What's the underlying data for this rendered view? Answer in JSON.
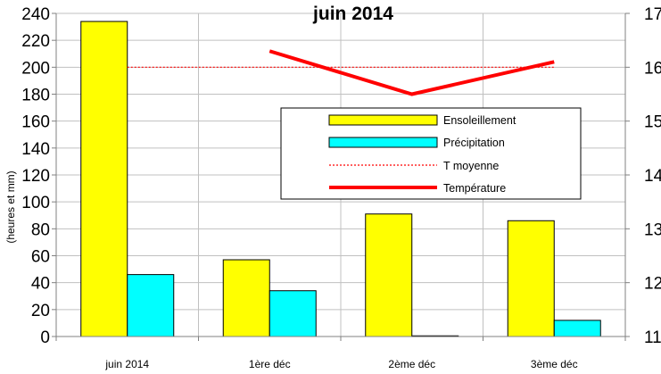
{
  "chart_data": {
    "type": "bar",
    "title": "juin 2014",
    "ylabel": "(heures et mm)",
    "categories": [
      "juin 2014",
      "1ère déc",
      "2ème déc",
      "3ème déc"
    ],
    "ylim_left": [
      0,
      240
    ],
    "y_ticks_left": [
      "0",
      "20",
      "40",
      "60",
      "80",
      "100",
      "120",
      "140",
      "160",
      "180",
      "200",
      "220",
      "240"
    ],
    "ylim_right": [
      11,
      17
    ],
    "y_ticks_right": [
      "11",
      "12",
      "13",
      "14",
      "15",
      "16",
      "17"
    ],
    "grid": true,
    "legend_position": "center-right",
    "series": [
      {
        "name": "Ensoleillement",
        "type": "bar",
        "axis": "left",
        "color": "#ffff00",
        "values": [
          234,
          57,
          91,
          86
        ]
      },
      {
        "name": "Précipitation",
        "type": "bar",
        "axis": "left",
        "color": "#00ffff",
        "values": [
          46,
          34,
          0.5,
          12
        ]
      },
      {
        "name": "T moyenne",
        "type": "line",
        "style": "dotted",
        "axis": "right",
        "color": "#ff0000",
        "values": [
          16,
          16,
          16,
          16
        ]
      },
      {
        "name": "Température",
        "type": "line",
        "axis": "right",
        "color": "#ff0000",
        "values": [
          null,
          16.3,
          15.5,
          16.1
        ]
      }
    ]
  }
}
